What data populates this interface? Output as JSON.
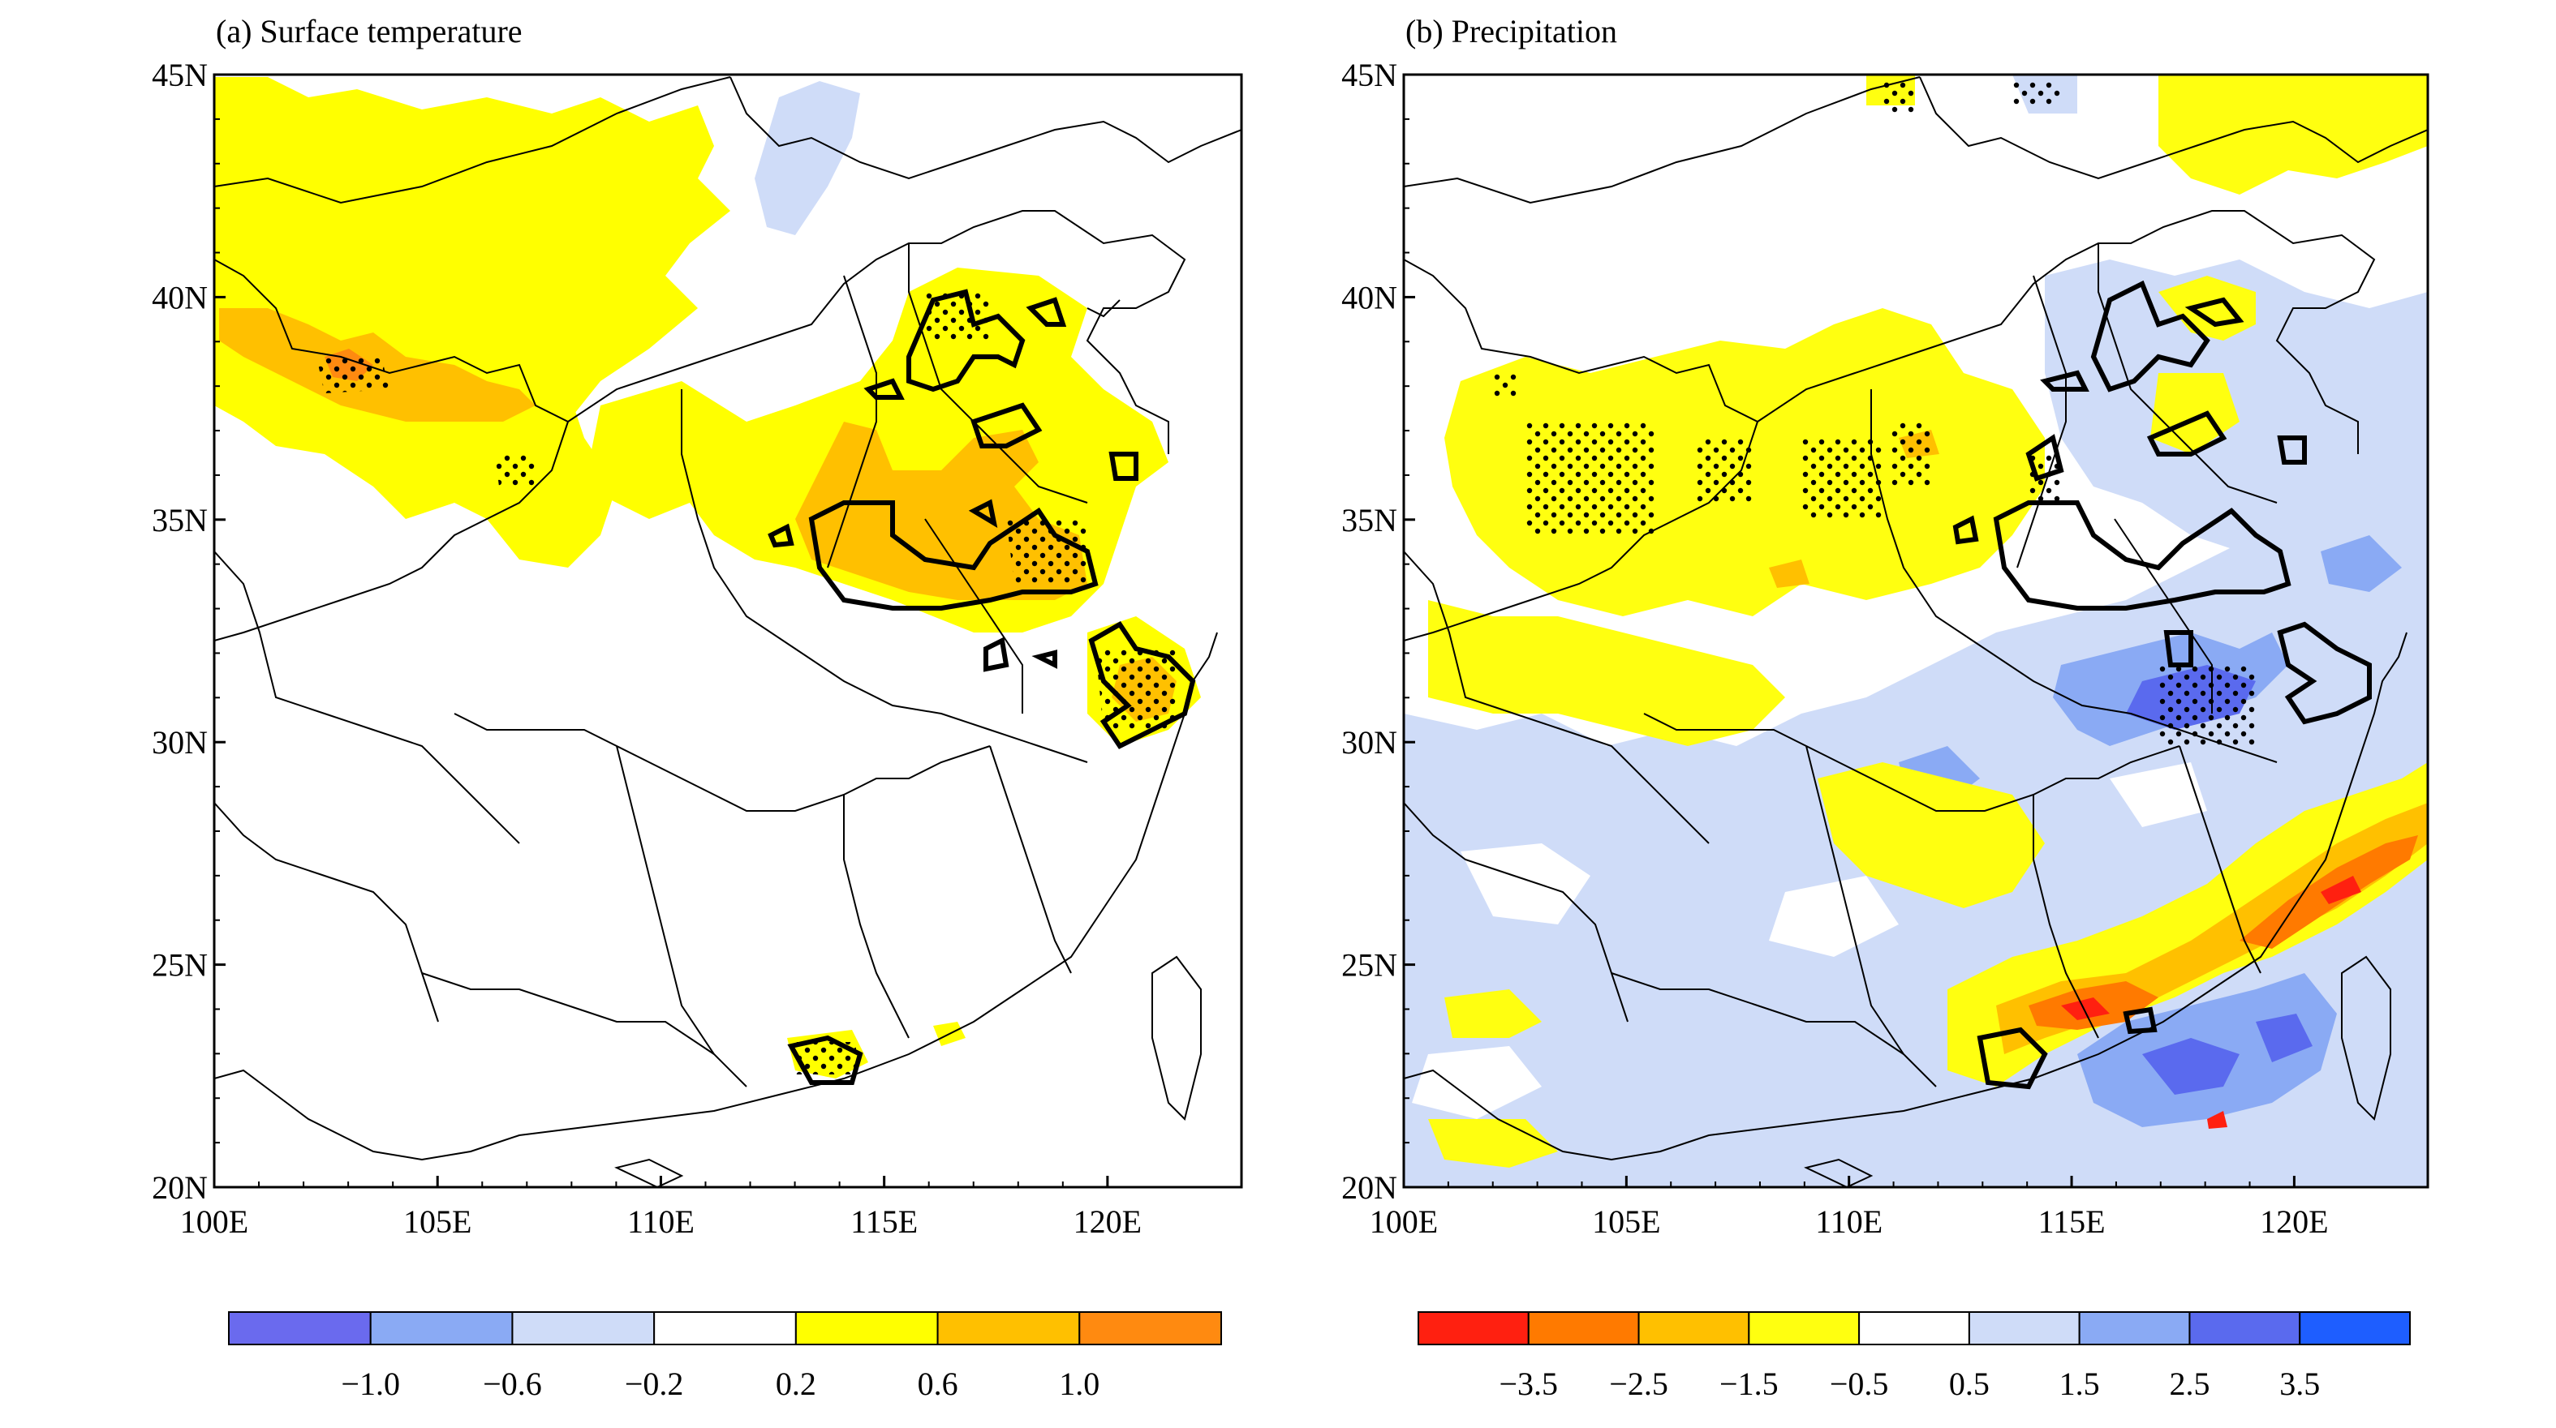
{
  "panels": [
    {
      "id": "a",
      "title": "(a) Surface temperature",
      "x_ticks": [
        "100E",
        "105E",
        "110E",
        "115E",
        "120E"
      ],
      "y_ticks": [
        "45N",
        "40N",
        "35N",
        "30N",
        "25N",
        "20N"
      ],
      "colorbar": {
        "colors": [
          "#6a6aee",
          "#8aaaf4",
          "#cfdcf8",
          "#ffffff",
          "#ffff00",
          "#ffc000",
          "#ff8a10"
        ],
        "labels": [
          "−1.0",
          "−0.6",
          "−0.2",
          "0.2",
          "0.6",
          "1.0"
        ]
      }
    },
    {
      "id": "b",
      "title": "(b) Precipitation",
      "x_ticks": [
        "100E",
        "105E",
        "110E",
        "115E",
        "120E"
      ],
      "y_ticks": [
        "45N",
        "40N",
        "35N",
        "30N",
        "25N",
        "20N"
      ],
      "colorbar": {
        "colors": [
          "#ff2010",
          "#ff7a00",
          "#ffc000",
          "#ffff10",
          "#ffffff",
          "#cfdcf8",
          "#8aaaf4",
          "#5a6aee",
          "#1e5eff"
        ],
        "labels": [
          "−3.5",
          "−2.5",
          "−1.5",
          "−0.5",
          "0.5",
          "1.5",
          "2.5",
          "3.5"
        ]
      }
    }
  ],
  "map_extent": {
    "lon": [
      100,
      123
    ],
    "lat": [
      20,
      45
    ]
  }
}
